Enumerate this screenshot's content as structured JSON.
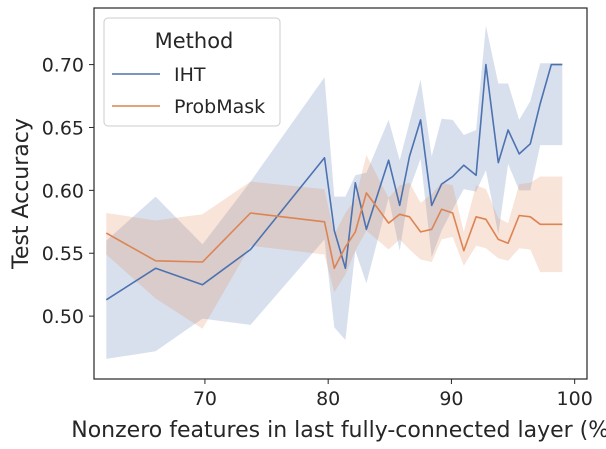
{
  "chart_data": {
    "type": "line",
    "title": "",
    "xlabel": "Nonzero features in last fully-connected layer (%)",
    "ylabel": "Test Accuracy",
    "xlim": [
      61,
      101
    ],
    "ylim": [
      0.45,
      0.745
    ],
    "xticks": [
      70,
      80,
      90,
      100
    ],
    "yticks": [
      0.5,
      0.55,
      0.6,
      0.65,
      0.7
    ],
    "ytick_labels": [
      "0.50",
      "0.55",
      "0.60",
      "0.65",
      "0.70"
    ],
    "grid": false,
    "legend": {
      "title": "Method",
      "position": "top-left"
    },
    "series": [
      {
        "name": "IHT",
        "color": "#4c72b0",
        "x": [
          62,
          66,
          69.8,
          73.7,
          79.7,
          80.5,
          81.4,
          82.2,
          83.1,
          84.9,
          85.8,
          86.6,
          87.5,
          88.4,
          89.2,
          90.1,
          91.0,
          92.0,
          92.8,
          93.8,
          94.6,
          95.5,
          96.4,
          97.2,
          98.1,
          99.0
        ],
        "y": [
          0.513,
          0.538,
          0.525,
          0.553,
          0.626,
          0.568,
          0.538,
          0.606,
          0.569,
          0.624,
          0.588,
          0.627,
          0.656,
          0.588,
          0.605,
          0.611,
          0.62,
          0.612,
          0.7,
          0.622,
          0.648,
          0.629,
          0.637,
          0.669,
          0.7,
          0.7
        ],
        "lower": [
          0.466,
          0.472,
          0.498,
          0.493,
          0.561,
          0.491,
          0.481,
          0.552,
          0.526,
          0.594,
          0.552,
          0.601,
          0.625,
          0.547,
          0.568,
          0.585,
          0.601,
          0.599,
          0.616,
          0.565,
          0.621,
          0.6,
          0.6,
          0.636,
          0.636,
          0.636
        ],
        "upper": [
          0.56,
          0.595,
          0.557,
          0.607,
          0.69,
          0.595,
          0.595,
          0.612,
          0.614,
          0.656,
          0.624,
          0.654,
          0.688,
          0.627,
          0.657,
          0.656,
          0.644,
          0.648,
          0.731,
          0.685,
          0.685,
          0.656,
          0.671,
          0.701,
          0.701,
          0.701
        ]
      },
      {
        "name": "ProbMask",
        "color": "#dd8452",
        "x": [
          62,
          66,
          69.8,
          73.7,
          79.7,
          80.5,
          81.4,
          82.2,
          83.1,
          84.9,
          85.8,
          86.6,
          87.5,
          88.4,
          89.2,
          90.1,
          91.0,
          92.0,
          92.8,
          93.8,
          94.6,
          95.5,
          96.4,
          97.2,
          98.1,
          99.0
        ],
        "y": [
          0.566,
          0.544,
          0.543,
          0.582,
          0.575,
          0.538,
          0.555,
          0.567,
          0.598,
          0.574,
          0.581,
          0.579,
          0.567,
          0.569,
          0.585,
          0.582,
          0.552,
          0.579,
          0.577,
          0.561,
          0.558,
          0.58,
          0.579,
          0.573,
          0.573,
          0.573
        ],
        "lower": [
          0.549,
          0.514,
          0.49,
          0.556,
          0.549,
          0.519,
          0.533,
          0.552,
          0.568,
          0.553,
          0.561,
          0.553,
          0.545,
          0.543,
          0.561,
          0.563,
          0.54,
          0.556,
          0.554,
          0.546,
          0.544,
          0.554,
          0.553,
          0.535,
          0.535,
          0.535
        ],
        "upper": [
          0.582,
          0.576,
          0.581,
          0.607,
          0.601,
          0.565,
          0.582,
          0.593,
          0.628,
          0.594,
          0.604,
          0.606,
          0.59,
          0.597,
          0.606,
          0.604,
          0.567,
          0.604,
          0.601,
          0.578,
          0.574,
          0.605,
          0.606,
          0.611,
          0.611,
          0.611
        ]
      }
    ]
  }
}
